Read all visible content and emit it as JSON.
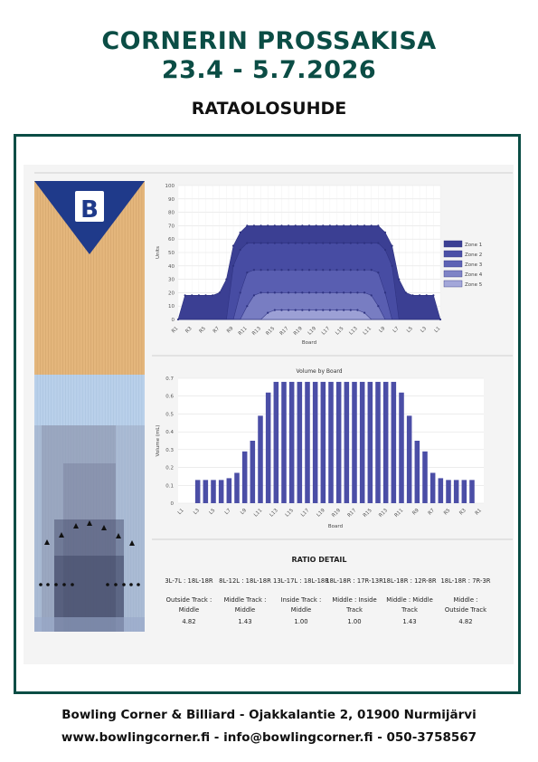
{
  "header": {
    "line1": "CORNERIN PROSSAKISA",
    "line2": "23.4 - 5.7.2026",
    "subtitle": "RATAOLOSUHDE"
  },
  "footer": {
    "line1": "Bowling Corner & Billiard - Ojakkalantie 2, 01900 Nurmijärvi",
    "line2": "www.bowlingcorner.fi - info@bowlingcorner.fi - 050-3758567"
  },
  "colors": {
    "brand_green": "#0b4d45",
    "lane_wood": "#e4b67c",
    "lane_oil": "#b9d0ea",
    "zone_dark": "#3b3f93"
  },
  "lane": {
    "logo_icon": "bowling-b-logo"
  },
  "chart_data": [
    {
      "type": "area",
      "title": "",
      "xlabel": "Board",
      "ylabel": "Units",
      "ylim": [
        0,
        100
      ],
      "yticks": [
        0,
        10,
        20,
        30,
        40,
        50,
        60,
        70,
        80,
        90,
        100
      ],
      "x": [
        "R1",
        "R2",
        "R3",
        "R4",
        "R5",
        "R6",
        "R7",
        "R8",
        "R9",
        "R10",
        "R11",
        "R12",
        "R13",
        "R14",
        "R15",
        "R16",
        "R17",
        "R18",
        "R19",
        "R20",
        "L19",
        "L18",
        "L17",
        "L16",
        "L15",
        "L14",
        "L13",
        "L12",
        "L11",
        "L10",
        "L9",
        "L8",
        "L7",
        "L6",
        "L5",
        "L4",
        "L3",
        "L2",
        "L1"
      ],
      "xtick_labels": [
        "R1",
        "R3",
        "R5",
        "R7",
        "R9",
        "R11",
        "R13",
        "R15",
        "R17",
        "R19",
        "L19",
        "L17",
        "L15",
        "L13",
        "L11",
        "L9",
        "L7",
        "L5",
        "L3",
        "L1"
      ],
      "legend_position": "right",
      "series": [
        {
          "name": "Zone 1",
          "values": [
            0,
            18,
            18,
            18,
            18,
            18,
            20,
            30,
            55,
            65,
            70,
            70,
            70,
            70,
            70,
            70,
            70,
            70,
            70,
            70,
            70,
            70,
            70,
            70,
            70,
            70,
            70,
            70,
            70,
            70,
            65,
            55,
            30,
            20,
            18,
            18,
            18,
            18,
            0
          ]
        },
        {
          "name": "Zone 2",
          "values": [
            0,
            0,
            0,
            0,
            0,
            0,
            0,
            0,
            40,
            52,
            57,
            57,
            57,
            57,
            57,
            57,
            57,
            57,
            57,
            57,
            57,
            57,
            57,
            57,
            57,
            57,
            57,
            57,
            57,
            57,
            52,
            40,
            0,
            0,
            0,
            0,
            0,
            0,
            0
          ]
        },
        {
          "name": "Zone 3",
          "values": [
            0,
            0,
            0,
            0,
            0,
            0,
            0,
            0,
            0,
            20,
            35,
            37,
            37,
            37,
            37,
            37,
            37,
            37,
            37,
            37,
            37,
            37,
            37,
            37,
            37,
            37,
            37,
            37,
            37,
            35,
            20,
            0,
            0,
            0,
            0,
            0,
            0,
            0,
            0
          ]
        },
        {
          "name": "Zone 4",
          "values": [
            0,
            0,
            0,
            0,
            0,
            0,
            0,
            0,
            0,
            0,
            10,
            18,
            20,
            20,
            20,
            20,
            20,
            20,
            20,
            20,
            20,
            20,
            20,
            20,
            20,
            20,
            20,
            20,
            18,
            10,
            0,
            0,
            0,
            0,
            0,
            0,
            0,
            0,
            0
          ]
        },
        {
          "name": "Zone 5",
          "values": [
            0,
            0,
            0,
            0,
            0,
            0,
            0,
            0,
            0,
            0,
            0,
            0,
            0,
            5,
            7,
            7,
            7,
            7,
            7,
            7,
            7,
            7,
            7,
            7,
            7,
            7,
            7,
            5,
            0,
            0,
            0,
            0,
            0,
            0,
            0,
            0,
            0,
            0,
            0
          ]
        }
      ],
      "series_colors": [
        "#3b3f93",
        "#4a4fa6",
        "#5d62b4",
        "#7e83c6",
        "#a3a7d9"
      ]
    },
    {
      "type": "bar",
      "title": "Volume by Board",
      "xlabel": "Board",
      "ylabel": "Volume (mL)",
      "ylim": [
        0,
        0.7
      ],
      "yticks": [
        "0",
        "0.1",
        "0.2",
        "0.3",
        "0.4",
        "0.5",
        "0.6",
        "0.7"
      ],
      "categories": [
        "L1",
        "L2",
        "L3",
        "L4",
        "L5",
        "L6",
        "L7",
        "L8",
        "L9",
        "L10",
        "L11",
        "L12",
        "L13",
        "L14",
        "L15",
        "L16",
        "L17",
        "L18",
        "L19",
        "L20",
        "R19",
        "R18",
        "R17",
        "R16",
        "R15",
        "R14",
        "R13",
        "R12",
        "R11",
        "R10",
        "R9",
        "R8",
        "R7",
        "R6",
        "R5",
        "R4",
        "R3",
        "R2",
        "R1"
      ],
      "xtick_labels": [
        "L1",
        "L3",
        "L5",
        "L7",
        "L9",
        "L11",
        "L13",
        "L15",
        "L17",
        "L19",
        "R19",
        "R17",
        "R15",
        "R13",
        "R11",
        "R9",
        "R7",
        "R5",
        "R3",
        "R1"
      ],
      "values": [
        0,
        0,
        0.13,
        0.13,
        0.13,
        0.13,
        0.14,
        0.17,
        0.29,
        0.35,
        0.49,
        0.62,
        0.68,
        0.68,
        0.68,
        0.68,
        0.68,
        0.68,
        0.68,
        0.68,
        0.68,
        0.68,
        0.68,
        0.68,
        0.68,
        0.68,
        0.68,
        0.68,
        0.62,
        0.49,
        0.35,
        0.29,
        0.17,
        0.14,
        0.13,
        0.13,
        0.13,
        0.13,
        0
      ],
      "bar_color": "#4b4ea6"
    }
  ],
  "ratio": {
    "title": "RATIO DETAIL",
    "columns": [
      {
        "boards": "3L-7L : 18L-18R",
        "track": "Outside Track : Middle",
        "value": "4.82"
      },
      {
        "boards": "8L-12L : 18L-18R",
        "track": "Middle Track : Middle",
        "value": "1.43"
      },
      {
        "boards": "13L-17L : 18L-18R",
        "track": "Inside Track : Middle",
        "value": "1.00"
      },
      {
        "boards": "18L-18R : 17R-13R",
        "track": "Middle : Inside Track",
        "value": "1.00"
      },
      {
        "boards": "18L-18R : 12R-8R",
        "track": "Middle : Middle Track",
        "value": "1.43"
      },
      {
        "boards": "18L-18R : 7R-3R",
        "track": "Middle : Outside Track",
        "value": "4.82"
      }
    ]
  }
}
